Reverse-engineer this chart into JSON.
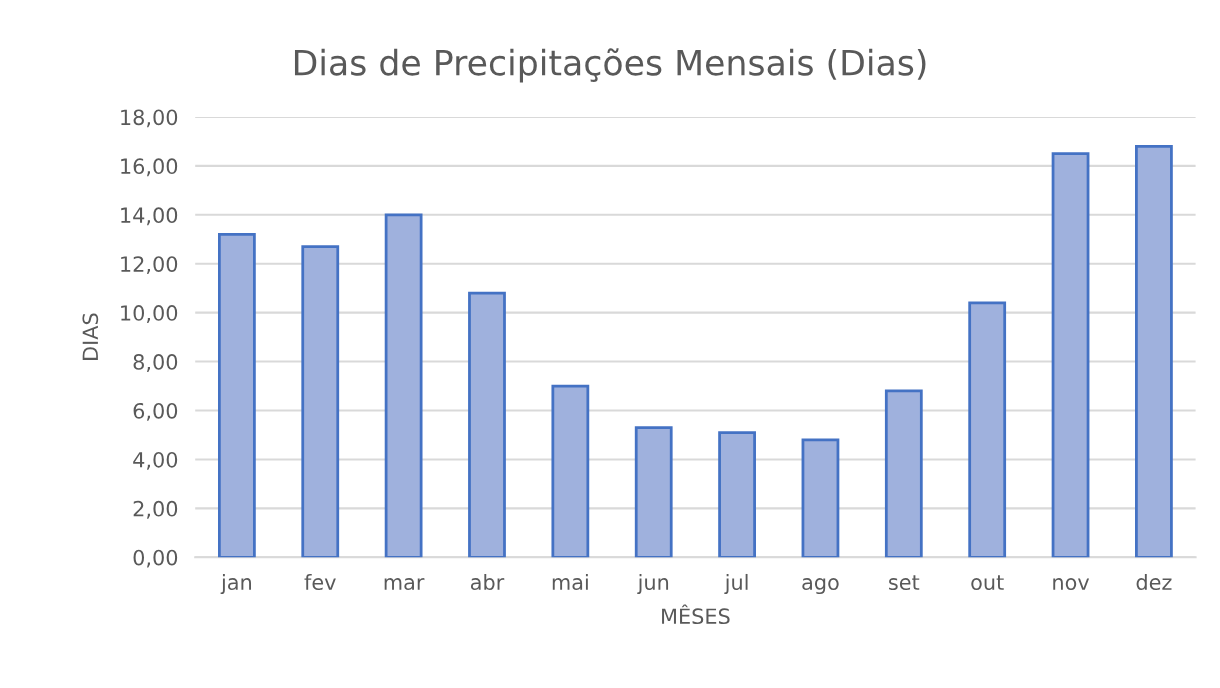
{
  "chart_data": {
    "type": "bar",
    "title": "Dias de Precipitações Mensais (Dias)",
    "xlabel": "MÊSES",
    "ylabel": "DIAS",
    "categories": [
      "jan",
      "fev",
      "mar",
      "abr",
      "mai",
      "jun",
      "jul",
      "ago",
      "set",
      "out",
      "nov",
      "dez"
    ],
    "values": [
      13.2,
      12.7,
      14.0,
      10.8,
      7.0,
      5.3,
      5.1,
      4.8,
      6.8,
      10.4,
      16.5,
      16.8
    ],
    "color": "#9fb1dd",
    "ylim": [
      0,
      18
    ],
    "yticks": [
      {
        "value": 0,
        "label": "0,00"
      },
      {
        "value": 2,
        "label": "2,00"
      },
      {
        "value": 4,
        "label": "4,00"
      },
      {
        "value": 6,
        "label": "6,00"
      },
      {
        "value": 8,
        "label": "8,00"
      },
      {
        "value": 10,
        "label": "10,00"
      },
      {
        "value": 12,
        "label": "12,00"
      },
      {
        "value": 14,
        "label": "14,00"
      },
      {
        "value": 16,
        "label": "16,00"
      },
      {
        "value": 18,
        "label": "18,00"
      }
    ],
    "grid": "y",
    "legend": false
  }
}
